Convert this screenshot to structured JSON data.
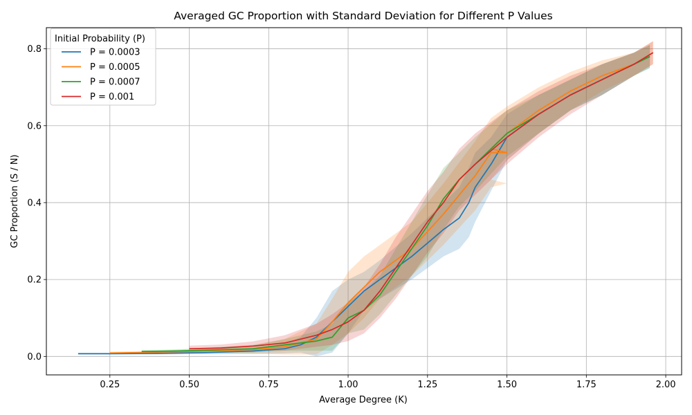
{
  "chart_data": {
    "type": "line",
    "title": "Averaged GC Proportion with Standard Deviation for Different P Values",
    "xlabel": "Average Degree (K)",
    "ylabel": "GC Proportion (S / N)",
    "xlim": [
      0.05,
      2.05
    ],
    "ylim": [
      -0.048,
      0.855
    ],
    "xticks": [
      0.25,
      0.5,
      0.75,
      1.0,
      1.25,
      1.5,
      1.75,
      2.0
    ],
    "xtick_labels": [
      "0.25",
      "0.50",
      "0.75",
      "1.00",
      "1.25",
      "1.50",
      "1.75",
      "2.00"
    ],
    "yticks": [
      0.0,
      0.2,
      0.4,
      0.6,
      0.8
    ],
    "ytick_labels": [
      "0.0",
      "0.2",
      "0.4",
      "0.6",
      "0.8"
    ],
    "grid": true,
    "legend": {
      "title": "Initial Probability (P)",
      "placement": "upper-left"
    },
    "series": [
      {
        "name": "P = 0.0003",
        "color": "#1f77b4",
        "x": [
          0.15,
          0.25,
          0.4,
          0.55,
          0.7,
          0.8,
          0.85,
          0.9,
          0.95,
          1.0,
          1.05,
          1.1,
          1.2,
          1.3,
          1.35,
          1.38,
          1.4,
          1.45,
          1.5,
          1.6,
          1.7,
          1.8,
          1.9,
          1.95
        ],
        "y": [
          0.007,
          0.007,
          0.008,
          0.01,
          0.014,
          0.02,
          0.03,
          0.05,
          0.09,
          0.13,
          0.17,
          0.2,
          0.26,
          0.33,
          0.36,
          0.4,
          0.44,
          0.5,
          0.57,
          0.63,
          0.68,
          0.72,
          0.76,
          0.78
        ],
        "sd": [
          0.002,
          0.002,
          0.003,
          0.004,
          0.008,
          0.012,
          0.02,
          0.05,
          0.08,
          0.07,
          0.05,
          0.05,
          0.06,
          0.07,
          0.08,
          0.09,
          0.09,
          0.07,
          0.06,
          0.05,
          0.04,
          0.04,
          0.03,
          0.03
        ]
      },
      {
        "name": "P = 0.0005",
        "color": "#ff7f0e",
        "x": [
          0.25,
          0.4,
          0.55,
          0.7,
          0.8,
          0.9,
          0.95,
          1.0,
          1.05,
          1.1,
          1.2,
          1.3,
          1.4,
          1.45,
          1.5,
          1.45,
          1.5,
          1.6,
          1.7,
          1.8,
          1.9,
          1.96
        ],
        "y": [
          0.009,
          0.011,
          0.014,
          0.018,
          0.025,
          0.045,
          0.09,
          0.14,
          0.18,
          0.22,
          0.28,
          0.37,
          0.47,
          0.53,
          0.53,
          0.54,
          0.58,
          0.64,
          0.69,
          0.73,
          0.76,
          0.79
        ],
        "sd": [
          0.003,
          0.004,
          0.006,
          0.01,
          0.02,
          0.04,
          0.06,
          0.08,
          0.08,
          0.07,
          0.07,
          0.08,
          0.09,
          0.09,
          0.08,
          0.08,
          0.07,
          0.06,
          0.05,
          0.04,
          0.03,
          0.03
        ]
      },
      {
        "name": "P = 0.0007",
        "color": "#2ca02c",
        "x": [
          0.35,
          0.45,
          0.55,
          0.7,
          0.8,
          0.9,
          0.95,
          1.0,
          1.05,
          1.1,
          1.15,
          1.2,
          1.25,
          1.3,
          1.35,
          1.4,
          1.5,
          1.6,
          1.7,
          1.8,
          1.9,
          1.95
        ],
        "y": [
          0.013,
          0.014,
          0.016,
          0.02,
          0.03,
          0.04,
          0.05,
          0.1,
          0.12,
          0.16,
          0.22,
          0.28,
          0.34,
          0.41,
          0.46,
          0.5,
          0.58,
          0.63,
          0.68,
          0.72,
          0.76,
          0.78
        ],
        "sd": [
          0.003,
          0.004,
          0.006,
          0.01,
          0.015,
          0.025,
          0.035,
          0.04,
          0.05,
          0.05,
          0.06,
          0.07,
          0.08,
          0.08,
          0.07,
          0.07,
          0.06,
          0.05,
          0.04,
          0.04,
          0.03,
          0.03
        ]
      },
      {
        "name": "P = 0.001",
        "color": "#d62728",
        "x": [
          0.5,
          0.6,
          0.7,
          0.8,
          0.9,
          0.95,
          1.0,
          1.05,
          1.1,
          1.15,
          1.2,
          1.25,
          1.3,
          1.35,
          1.4,
          1.5,
          1.6,
          1.7,
          1.8,
          1.9,
          1.96
        ],
        "y": [
          0.02,
          0.022,
          0.027,
          0.035,
          0.055,
          0.07,
          0.09,
          0.12,
          0.17,
          0.23,
          0.29,
          0.35,
          0.4,
          0.46,
          0.5,
          0.57,
          0.63,
          0.68,
          0.72,
          0.76,
          0.79
        ],
        "sd": [
          0.008,
          0.009,
          0.012,
          0.02,
          0.03,
          0.04,
          0.05,
          0.06,
          0.07,
          0.08,
          0.08,
          0.08,
          0.08,
          0.08,
          0.08,
          0.07,
          0.06,
          0.05,
          0.04,
          0.03,
          0.03
        ]
      }
    ]
  }
}
